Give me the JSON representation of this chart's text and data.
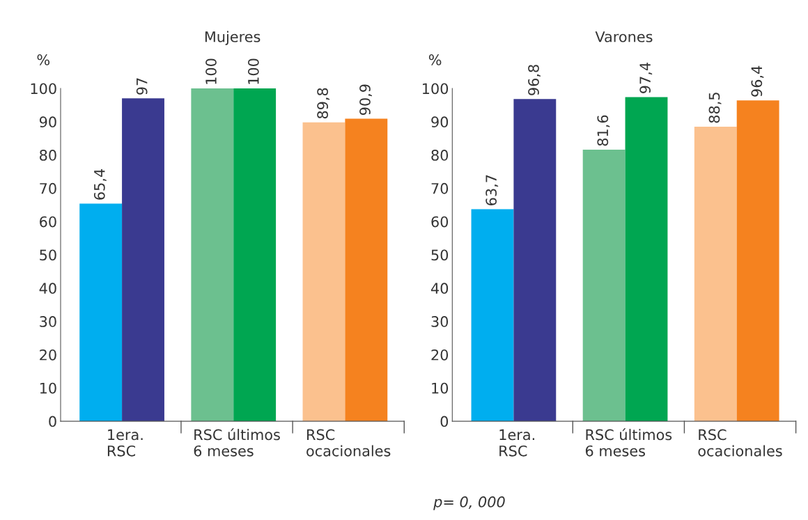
{
  "chart_data": [
    {
      "type": "bar",
      "title": "Mujeres",
      "ylabel": "%",
      "categories": [
        "1era.\nRSC",
        "RSC últimos\n6 meses",
        "RSC\nocacionales"
      ],
      "ylim": [
        0,
        100
      ],
      "yticks": [
        0,
        10,
        20,
        30,
        40,
        50,
        60,
        70,
        80,
        90,
        100
      ],
      "grid": false,
      "series": [
        {
          "colors": [
            "#00aeef",
            "#6cc08f",
            "#fbc18e"
          ],
          "values": [
            65.4,
            100,
            89.8
          ],
          "value_labels": [
            "65,4",
            "100",
            "89,8"
          ]
        },
        {
          "colors": [
            "#3a3a90",
            "#00a651",
            "#f5821f"
          ],
          "values": [
            97,
            100,
            90.9
          ],
          "value_labels": [
            "97",
            "100",
            "90,9"
          ]
        }
      ]
    },
    {
      "type": "bar",
      "title": "Varones",
      "ylabel": "%",
      "categories": [
        "1era.\nRSC",
        "RSC últimos\n6 meses",
        "RSC\nocacionales"
      ],
      "ylim": [
        0,
        100
      ],
      "yticks": [
        0,
        10,
        20,
        30,
        40,
        50,
        60,
        70,
        80,
        90,
        100
      ],
      "grid": false,
      "annotations": [
        "p= 0, 000"
      ],
      "series": [
        {
          "colors": [
            "#00aeef",
            "#6cc08f",
            "#fbc18e"
          ],
          "values": [
            63.7,
            81.6,
            88.5
          ],
          "value_labels": [
            "63,7",
            "81,6",
            "88,5"
          ]
        },
        {
          "colors": [
            "#3a3a90",
            "#00a651",
            "#f5821f"
          ],
          "values": [
            96.8,
            97.4,
            96.4
          ],
          "value_labels": [
            "96,8",
            "97,4",
            "96,4"
          ]
        }
      ]
    }
  ]
}
